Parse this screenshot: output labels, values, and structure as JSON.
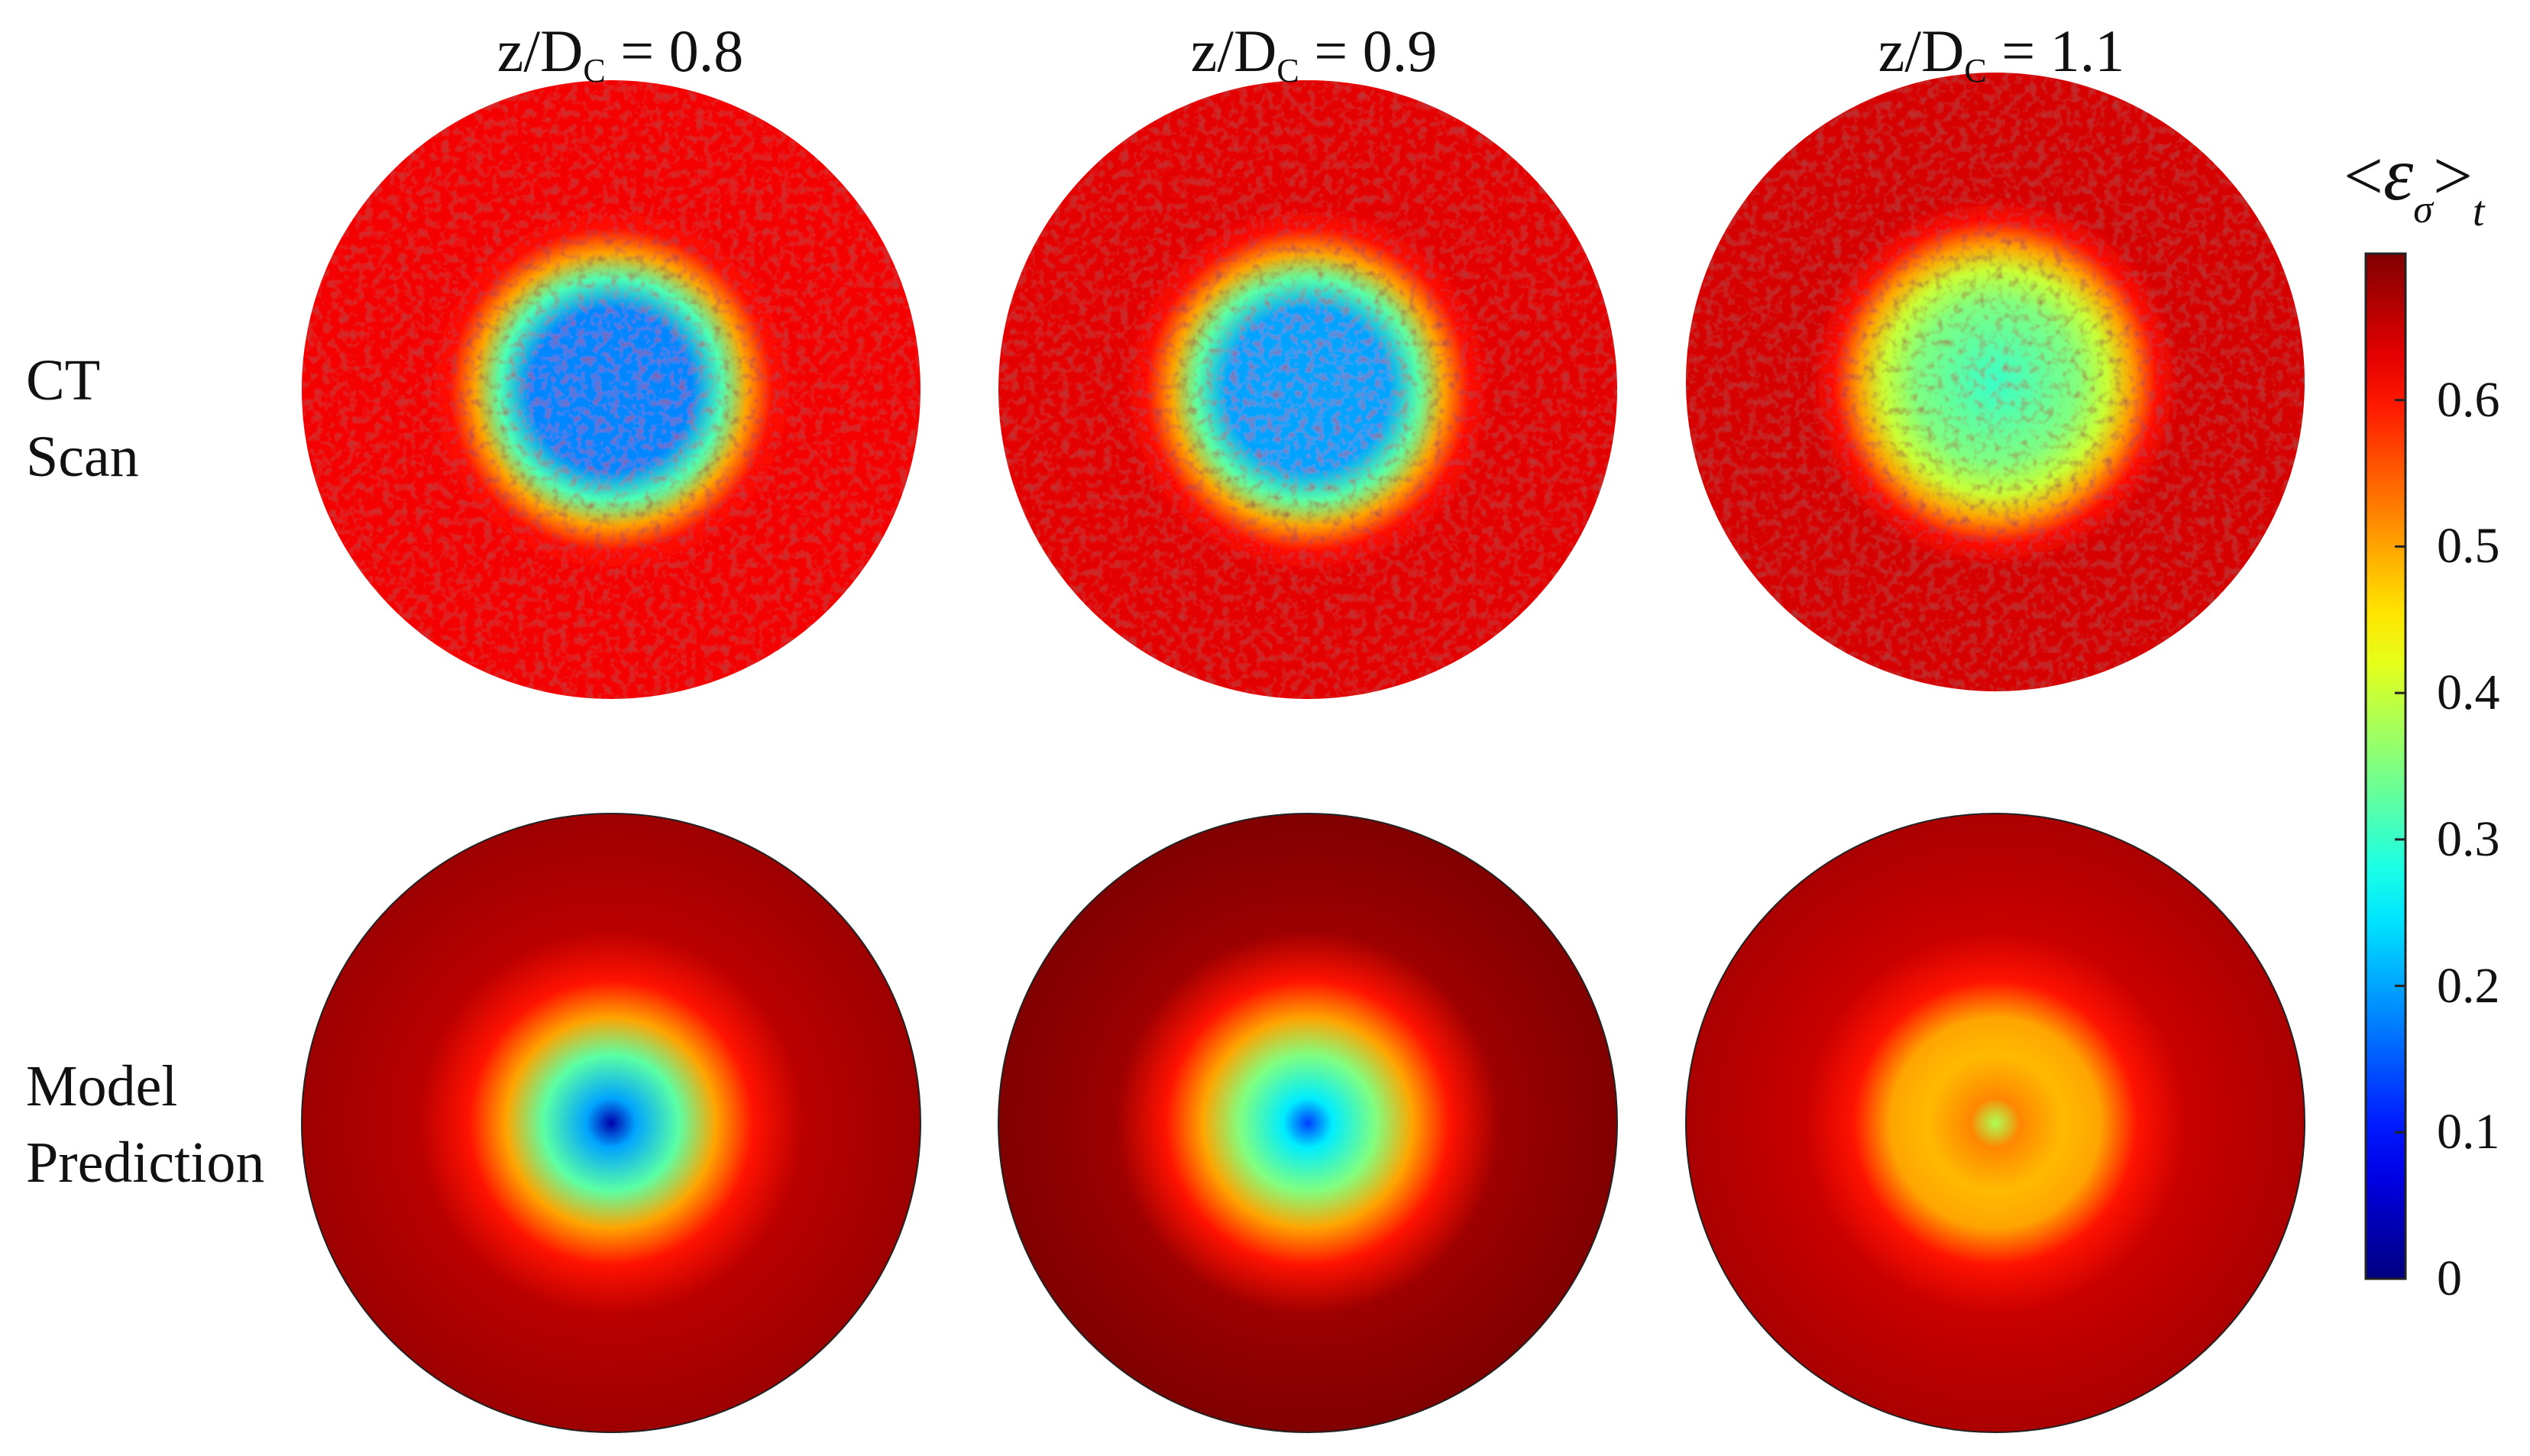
{
  "columns": [
    {
      "title_main": "z/D",
      "title_sub": "C",
      "title_rest": " = 0.8"
    },
    {
      "title_main": "z/D",
      "title_sub": "C",
      "title_rest": " = 0.9"
    },
    {
      "title_main": "z/D",
      "title_sub": "C",
      "title_rest": " = 1.1"
    }
  ],
  "rows": [
    {
      "label_line1": "CT",
      "label_line2": "Scan"
    },
    {
      "label_line1": "Model",
      "label_line2": "Prediction"
    }
  ],
  "colorbar": {
    "title_open": "<",
    "title_symbol": "ε",
    "title_symbol_sub": "σ",
    "title_close": ">",
    "title_sub": "t",
    "ticks": [
      "0",
      "0.1",
      "0.2",
      "0.3",
      "0.4",
      "0.5",
      "0.6"
    ],
    "range": [
      0,
      0.7
    ],
    "colormap": "jet"
  },
  "panels": [
    {
      "row": "CT Scan",
      "column": "z/DC = 0.8",
      "center_value": 0.18,
      "core_value": 0.18,
      "rim_value": 0.62,
      "noisy": true
    },
    {
      "row": "CT Scan",
      "column": "z/DC = 0.9",
      "center_value": 0.2,
      "core_value": 0.2,
      "rim_value": 0.63,
      "noisy": true
    },
    {
      "row": "CT Scan",
      "column": "z/DC = 1.1",
      "center_value": 0.3,
      "core_value": 0.35,
      "rim_value": 0.64,
      "noisy": true
    },
    {
      "row": "Model Prediction",
      "column": "z/DC = 0.8",
      "center_value": 0.03,
      "core_value": 0.2,
      "rim_value": 0.66,
      "noisy": false
    },
    {
      "row": "Model Prediction",
      "column": "z/DC = 0.9",
      "center_value": 0.13,
      "core_value": 0.25,
      "rim_value": 0.68,
      "noisy": false
    },
    {
      "row": "Model Prediction",
      "column": "z/DC = 1.1",
      "center_value": 0.38,
      "core_value": 0.52,
      "rim_value": 0.65,
      "noisy": false
    }
  ]
}
